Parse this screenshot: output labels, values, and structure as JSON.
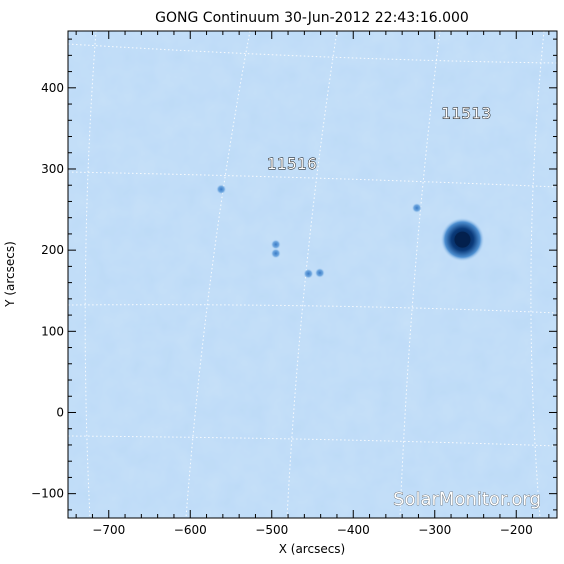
{
  "chart_data": {
    "type": "heatmap",
    "title": "GONG Continuum 30-Jun-2012 22:43:16.000",
    "xlabel": "X (arcsecs)",
    "ylabel": "Y (arcsecs)",
    "xlim": [
      -750,
      -150
    ],
    "ylim": [
      -130,
      470
    ],
    "x_ticks": [
      -700,
      -600,
      -500,
      -400,
      -300,
      -200
    ],
    "y_ticks": [
      -100,
      0,
      100,
      200,
      300,
      400
    ],
    "x_tick_labels": [
      "−700",
      "−600",
      "−500",
      "−400",
      "−300",
      "−200"
    ],
    "y_tick_labels": [
      "−100",
      "0",
      "100",
      "200",
      "300",
      "400"
    ],
    "grid": "heliographic (dotted)",
    "active_regions": [
      {
        "label": "11513",
        "x": -261,
        "y": 362
      },
      {
        "label": "11516",
        "x": -475,
        "y": 300
      }
    ],
    "sunspots": [
      {
        "x": -266,
        "y": 213,
        "size": "large"
      },
      {
        "x": -322,
        "y": 252,
        "size": "small"
      },
      {
        "x": -495,
        "y": 207,
        "size": "small"
      },
      {
        "x": -495,
        "y": 196,
        "size": "small"
      },
      {
        "x": -441,
        "y": 172,
        "size": "small"
      },
      {
        "x": -455,
        "y": 171,
        "size": "small"
      },
      {
        "x": -562,
        "y": 275,
        "size": "small"
      }
    ],
    "colors": {
      "background": "#bcdaf7",
      "umbra": "#07306a",
      "grid": "#ffffff"
    }
  },
  "watermark": "SolarMonitor.org"
}
